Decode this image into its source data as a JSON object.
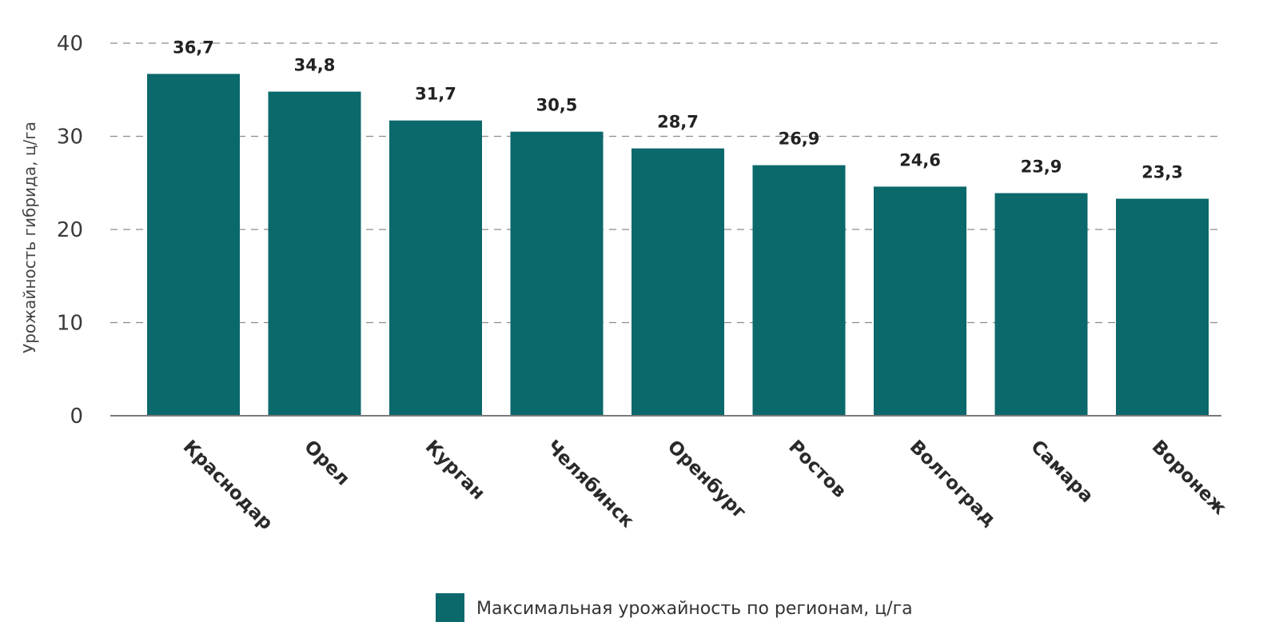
{
  "chart_data": {
    "type": "bar",
    "title": "",
    "xlabel": "",
    "ylabel": "Урожайность гибрида, ц/га",
    "ylim": [
      0,
      40
    ],
    "yticks": [
      0,
      10,
      20,
      30,
      40
    ],
    "grid": true,
    "legend_position": "bottom",
    "categories": [
      "Краснодар",
      "Орел",
      "Курган",
      "Челябинск",
      "Оренбург",
      "Ростов",
      "Волгоград",
      "Самара",
      "Воронеж"
    ],
    "value_labels": [
      "36,7",
      "34,8",
      "31,7",
      "30,5",
      "28,7",
      "26,9",
      "24,6",
      "23,9",
      "23,3"
    ],
    "series": [
      {
        "name": "Максимальная урожайность по регионам, ц/га",
        "values": [
          36.7,
          34.8,
          31.7,
          30.5,
          28.7,
          26.9,
          24.6,
          23.9,
          23.3
        ],
        "color": "#0b686b"
      }
    ]
  }
}
